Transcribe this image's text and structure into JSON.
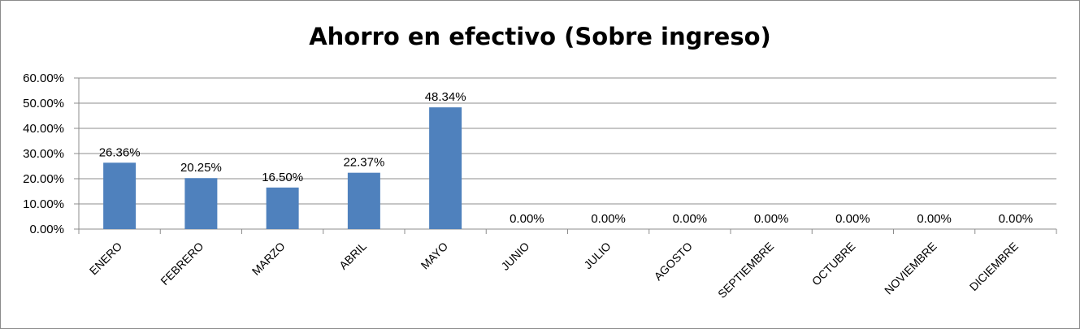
{
  "chart_data": {
    "type": "bar",
    "title": "Ahorro en efectivo (Sobre ingreso)",
    "categories": [
      "ENERO",
      "FEBRERO",
      "MARZO",
      "ABRIL",
      "MAYO",
      "JUNIO",
      "JULIO",
      "AGOSTO",
      "SEPTIEMBRE",
      "OCTUBRE",
      "NOVIEMBRE",
      "DICIEMBRE"
    ],
    "values": [
      26.36,
      20.25,
      16.5,
      22.37,
      48.34,
      0,
      0,
      0,
      0,
      0,
      0,
      0
    ],
    "data_labels": [
      "26.36%",
      "20.25%",
      "16.50%",
      "22.37%",
      "48.34%",
      "0.00%",
      "0.00%",
      "0.00%",
      "0.00%",
      "0.00%",
      "0.00%",
      "0.00%"
    ],
    "y_ticks": [
      "0.00%",
      "10.00%",
      "20.00%",
      "30.00%",
      "40.00%",
      "50.00%",
      "60.00%"
    ],
    "ylim": [
      0,
      60
    ],
    "grid": true,
    "legend": "none",
    "bar_color": "#4f81bd"
  }
}
